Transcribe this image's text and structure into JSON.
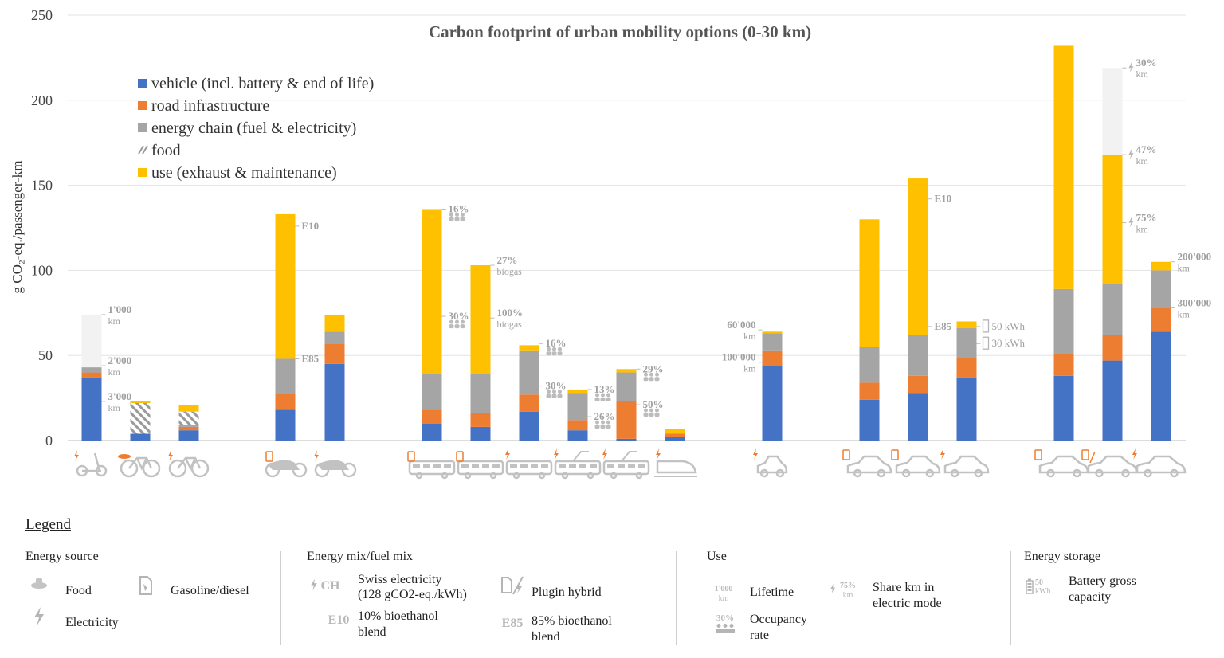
{
  "chart_data": {
    "type": "bar",
    "stacked": true,
    "title": "Carbon footprint of urban mobility options (0-30 km)",
    "ylabel": "g CO₂-eq./passenger-km",
    "ylim": [
      0,
      250
    ],
    "yticks": [
      "0",
      "50",
      "100",
      "150",
      "200",
      "250"
    ],
    "legend_position": "top-left",
    "series": [
      {
        "name": "vehicle (incl. battery & end of life)",
        "color": "#4472C4",
        "pattern": "solid"
      },
      {
        "name": "road infrastructure",
        "color": "#ED7D31",
        "pattern": "solid"
      },
      {
        "name": "energy chain (fuel & electricity)",
        "color": "#A5A5A5",
        "pattern": "solid"
      },
      {
        "name": "food",
        "color": "#A5A5A5",
        "pattern": "hatch"
      },
      {
        "name": "use (exhaust & maintenance)",
        "color": "#FFC000",
        "pattern": "solid"
      }
    ],
    "bars": [
      {
        "x": 115,
        "icon": "electric-scooter",
        "values": [
          37,
          3,
          3,
          0,
          0
        ],
        "ghost_top": 74
      },
      {
        "x": 176,
        "icon": "bicycle-food",
        "values": [
          4,
          0,
          0,
          18,
          1
        ]
      },
      {
        "x": 237,
        "icon": "electric-bicycle",
        "values": [
          6,
          2,
          1,
          8,
          4
        ]
      },
      {
        "x": 358,
        "icon": "gasoline-motorbike",
        "values": [
          18,
          10,
          20,
          0,
          85
        ]
      },
      {
        "x": 420,
        "icon": "electric-motorbike",
        "values": [
          45,
          12,
          7,
          0,
          10
        ]
      },
      {
        "x": 542,
        "icon": "diesel-bus",
        "values": [
          10,
          8,
          21,
          0,
          97
        ]
      },
      {
        "x": 603,
        "icon": "biogas-bus",
        "values": [
          8,
          8,
          23,
          0,
          64
        ]
      },
      {
        "x": 664,
        "icon": "electric-bus",
        "values": [
          17,
          10,
          26,
          0,
          3
        ]
      },
      {
        "x": 725,
        "icon": "trolleybus",
        "values": [
          6,
          6,
          16,
          0,
          2
        ]
      },
      {
        "x": 786,
        "icon": "tram",
        "values": [
          1,
          22,
          17,
          0,
          2
        ]
      },
      {
        "x": 847,
        "icon": "train",
        "values": [
          2,
          2,
          0,
          0,
          3
        ]
      },
      {
        "x": 969,
        "icon": "electric-microcar",
        "values": [
          44,
          9,
          10,
          0,
          1
        ]
      },
      {
        "x": 1091,
        "icon": "diesel-car",
        "values": [
          24,
          10,
          21,
          0,
          75
        ]
      },
      {
        "x": 1152,
        "icon": "gasoline-car",
        "values": [
          28,
          10,
          24,
          0,
          92
        ]
      },
      {
        "x": 1213,
        "icon": "electric-car",
        "values": [
          37,
          12,
          17,
          0,
          4
        ]
      },
      {
        "x": 1335,
        "icon": "gasoline-suv",
        "values": [
          38,
          13,
          38,
          0,
          143
        ]
      },
      {
        "x": 1396,
        "icon": "plugin-hybrid-suv",
        "values": [
          47,
          15,
          30,
          0,
          76
        ],
        "ghost_top": 219
      },
      {
        "x": 1457,
        "icon": "electric-suv",
        "values": [
          64,
          14,
          22,
          0,
          5
        ]
      }
    ],
    "annotations": [
      {
        "bar": 0,
        "y": 74,
        "side": "right",
        "lines": [
          "1'000",
          "km"
        ]
      },
      {
        "bar": 0,
        "y": 44,
        "side": "right",
        "lines": [
          "2'000",
          "km"
        ]
      },
      {
        "bar": 0,
        "y": 23,
        "side": "right",
        "lines": [
          "3'000",
          "km"
        ]
      },
      {
        "bar": 3,
        "y": 126,
        "side": "right",
        "lines": [
          "E10"
        ]
      },
      {
        "bar": 3,
        "y": 48,
        "side": "right",
        "lines": [
          "E85"
        ]
      },
      {
        "bar": 5,
        "y": 136,
        "side": "right",
        "lines": [
          "16%"
        ],
        "people": true
      },
      {
        "bar": 5,
        "y": 73,
        "side": "right",
        "lines": [
          "30%"
        ],
        "people": true
      },
      {
        "bar": 6,
        "y": 103,
        "side": "right",
        "lines": [
          "27%",
          "biogas"
        ]
      },
      {
        "bar": 6,
        "y": 72,
        "side": "right",
        "lines": [
          "100%",
          "biogas"
        ]
      },
      {
        "bar": 7,
        "y": 57,
        "side": "right",
        "lines": [
          "16%"
        ],
        "people": true
      },
      {
        "bar": 7,
        "y": 32,
        "side": "right",
        "lines": [
          "30%"
        ],
        "people": true
      },
      {
        "bar": 8,
        "y": 30,
        "side": "right",
        "lines": [
          "13%"
        ],
        "people": true
      },
      {
        "bar": 8,
        "y": 14,
        "side": "right",
        "lines": [
          "26%"
        ],
        "people": true
      },
      {
        "bar": 9,
        "y": 42,
        "side": "right",
        "lines": [
          "29%"
        ],
        "people": true
      },
      {
        "bar": 9,
        "y": 21,
        "side": "right",
        "lines": [
          "50%"
        ],
        "people": true
      },
      {
        "bar": 11,
        "y": 65,
        "side": "left",
        "lines": [
          "60'000",
          "km"
        ]
      },
      {
        "bar": 11,
        "y": 46,
        "side": "left",
        "lines": [
          "100'000",
          "km"
        ]
      },
      {
        "bar": 14,
        "y": 67,
        "side": "right",
        "lines": [
          "50 kWh"
        ],
        "battery": true
      },
      {
        "bar": 14,
        "y": 57,
        "side": "right",
        "lines": [
          "30 kWh"
        ],
        "battery": true
      },
      {
        "bar": 13,
        "y": 142,
        "side": "right",
        "lines": [
          "E10"
        ]
      },
      {
        "bar": 13,
        "y": 67,
        "side": "right",
        "lines": [
          "E85"
        ]
      },
      {
        "bar": 16,
        "y": 219,
        "side": "right",
        "lines": [
          "30%",
          "km"
        ],
        "bolt": true
      },
      {
        "bar": 16,
        "y": 168,
        "side": "right",
        "lines": [
          "47%",
          "km"
        ],
        "bolt": true
      },
      {
        "bar": 16,
        "y": 128,
        "side": "right",
        "lines": [
          "75%",
          "km"
        ],
        "bolt": true
      },
      {
        "bar": 17,
        "y": 105,
        "side": "right",
        "lines": [
          "200'000",
          "km"
        ]
      },
      {
        "bar": 17,
        "y": 78,
        "side": "right",
        "lines": [
          "300'000",
          "km"
        ]
      }
    ]
  },
  "legend": {
    "title": "Legend",
    "energy_source": {
      "heading": "Energy source",
      "food": "Food",
      "gasoline": "Gasoline/diesel",
      "electricity": "Electricity"
    },
    "energy_mix": {
      "heading": "Energy mix/fuel mix",
      "ch_symbol": "CH",
      "ch_label_1": "Swiss electricity",
      "ch_label_2": "(128 gCO2-eq./kWh)",
      "plugin": "Plugin hybrid",
      "e10_symbol": "E10",
      "e10_label_1": "10% bioethanol",
      "e10_label_2": "blend",
      "e85_symbol": "E85",
      "e85_label_1": "85% bioethanol",
      "e85_label_2": "blend"
    },
    "use": {
      "heading": "Use",
      "lifetime_symbol_1": "1'000",
      "lifetime_symbol_2": "km",
      "lifetime": "Lifetime",
      "share_symbol_1": "75%",
      "share_symbol_2": "km",
      "share_1": "Share km in",
      "share_2": "electric mode",
      "occupancy_symbol": "30%",
      "occupancy_1": "Occupancy",
      "occupancy_2": "rate"
    },
    "storage": {
      "heading": "Energy storage",
      "symbol_1": "50",
      "symbol_2": "kWh",
      "label_1": "Battery gross",
      "label_2": "capacity"
    }
  },
  "colors": {
    "vehicle": "#4472C4",
    "infrastructure": "#ED7D31",
    "energy": "#A5A5A5",
    "use": "#FFC000",
    "icons": "#b5b5b5",
    "annotation": "#a0a0a0"
  }
}
